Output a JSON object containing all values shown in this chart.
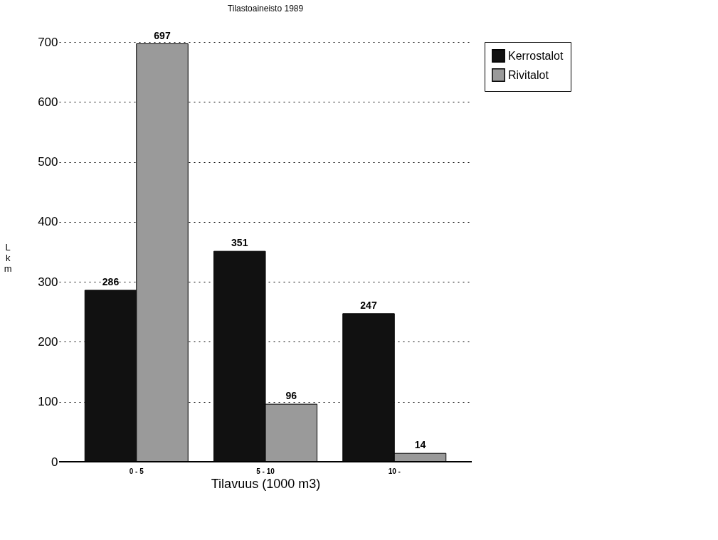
{
  "chart_data": {
    "type": "bar",
    "title": "Tilastoaineisto 1989",
    "xlabel": "Tilavuus (1000 m3)",
    "ylabel": "Lkm",
    "categories": [
      "0 - 5",
      "5 - 10",
      "10 -"
    ],
    "series": [
      {
        "name": "Kerrostalot",
        "color": "#111111",
        "values": [
          286,
          351,
          247
        ]
      },
      {
        "name": "Rivitalot",
        "color": "#9a9a9a",
        "values": [
          697,
          96,
          14
        ]
      }
    ],
    "ylim": [
      0,
      700
    ],
    "yticks": [
      0,
      100,
      200,
      300,
      400,
      500,
      600,
      700
    ],
    "grid": "y",
    "legend": "right",
    "data_labels": true
  }
}
